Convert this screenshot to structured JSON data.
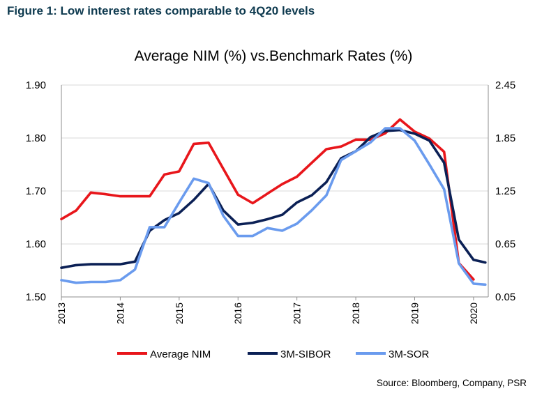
{
  "figure_title": "Figure 1: Low interest rates comparable to 4Q20 levels",
  "source": "Source: Bloomberg, Company, PSR",
  "colors": {
    "figure_title": "#0e3a4f",
    "average_nim": "#e8161b",
    "sibor": "#0b2055",
    "sor": "#6a9bee",
    "axis": "#8c8c8c"
  },
  "chart_data": {
    "type": "line",
    "title": "Average NIM (%) vs.Benchmark Rates (%)",
    "y_left": {
      "range": [
        1.5,
        1.9
      ],
      "ticks": [
        "1.50",
        "1.60",
        "1.70",
        "1.80",
        "1.90"
      ]
    },
    "y_right": {
      "range": [
        0.05,
        2.45
      ],
      "ticks": [
        "0.05",
        "0.65",
        "1.25",
        "1.85",
        "2.45"
      ]
    },
    "x": {
      "range": [
        2013,
        2020.25
      ],
      "ticks": [
        "2013",
        "2014",
        "2015",
        "2016",
        "2017",
        "2018",
        "2019",
        "2020"
      ]
    },
    "grid": "horizontal",
    "legend_position": "bottom",
    "series": [
      {
        "name": "Average NIM",
        "axis": "left",
        "points": [
          [
            2013.0,
            1.647
          ],
          [
            2013.25,
            1.663
          ],
          [
            2013.5,
            1.697
          ],
          [
            2013.75,
            1.694
          ],
          [
            2014.0,
            1.69
          ],
          [
            2014.25,
            1.69
          ],
          [
            2014.5,
            1.69
          ],
          [
            2014.75,
            1.731
          ],
          [
            2015.0,
            1.737
          ],
          [
            2015.25,
            1.789
          ],
          [
            2015.5,
            1.791
          ],
          [
            2015.75,
            1.742
          ],
          [
            2016.0,
            1.693
          ],
          [
            2016.25,
            1.677
          ],
          [
            2016.5,
            1.695
          ],
          [
            2016.75,
            1.713
          ],
          [
            2017.0,
            1.727
          ],
          [
            2017.25,
            1.753
          ],
          [
            2017.5,
            1.779
          ],
          [
            2017.75,
            1.784
          ],
          [
            2018.0,
            1.797
          ],
          [
            2018.25,
            1.797
          ],
          [
            2018.5,
            1.809
          ],
          [
            2018.75,
            1.835
          ],
          [
            2019.0,
            1.812
          ],
          [
            2019.25,
            1.799
          ],
          [
            2019.5,
            1.774
          ],
          [
            2019.75,
            1.564
          ],
          [
            2020.0,
            1.533
          ]
        ]
      },
      {
        "name": "3M-SIBOR",
        "axis": "right",
        "points": [
          [
            2013.0,
            0.38
          ],
          [
            2013.25,
            0.41
          ],
          [
            2013.5,
            0.42
          ],
          [
            2013.75,
            0.42
          ],
          [
            2014.0,
            0.42
          ],
          [
            2014.25,
            0.45
          ],
          [
            2014.5,
            0.8
          ],
          [
            2014.75,
            0.92
          ],
          [
            2015.0,
            1.0
          ],
          [
            2015.25,
            1.15
          ],
          [
            2015.5,
            1.33
          ],
          [
            2015.75,
            1.03
          ],
          [
            2016.0,
            0.87
          ],
          [
            2016.25,
            0.89
          ],
          [
            2016.5,
            0.93
          ],
          [
            2016.75,
            0.98
          ],
          [
            2017.0,
            1.12
          ],
          [
            2017.25,
            1.2
          ],
          [
            2017.5,
            1.35
          ],
          [
            2017.75,
            1.62
          ],
          [
            2018.0,
            1.7
          ],
          [
            2018.25,
            1.86
          ],
          [
            2018.5,
            1.93
          ],
          [
            2018.75,
            1.94
          ],
          [
            2019.0,
            1.9
          ],
          [
            2019.25,
            1.82
          ],
          [
            2019.5,
            1.57
          ],
          [
            2019.75,
            0.7
          ],
          [
            2020.0,
            0.47
          ],
          [
            2020.2,
            0.44
          ]
        ]
      },
      {
        "name": "3M-SOR",
        "axis": "right",
        "points": [
          [
            2013.0,
            0.24
          ],
          [
            2013.25,
            0.21
          ],
          [
            2013.5,
            0.22
          ],
          [
            2013.75,
            0.22
          ],
          [
            2014.0,
            0.24
          ],
          [
            2014.25,
            0.36
          ],
          [
            2014.5,
            0.84
          ],
          [
            2014.75,
            0.84
          ],
          [
            2015.0,
            1.12
          ],
          [
            2015.25,
            1.39
          ],
          [
            2015.5,
            1.34
          ],
          [
            2015.75,
            0.97
          ],
          [
            2016.0,
            0.74
          ],
          [
            2016.25,
            0.74
          ],
          [
            2016.5,
            0.83
          ],
          [
            2016.75,
            0.8
          ],
          [
            2017.0,
            0.88
          ],
          [
            2017.25,
            1.03
          ],
          [
            2017.5,
            1.2
          ],
          [
            2017.75,
            1.6
          ],
          [
            2018.0,
            1.7
          ],
          [
            2018.25,
            1.8
          ],
          [
            2018.5,
            1.96
          ],
          [
            2018.75,
            1.96
          ],
          [
            2019.0,
            1.82
          ],
          [
            2019.25,
            1.55
          ],
          [
            2019.5,
            1.27
          ],
          [
            2019.75,
            0.43
          ],
          [
            2020.0,
            0.2
          ],
          [
            2020.2,
            0.19
          ]
        ]
      }
    ]
  }
}
